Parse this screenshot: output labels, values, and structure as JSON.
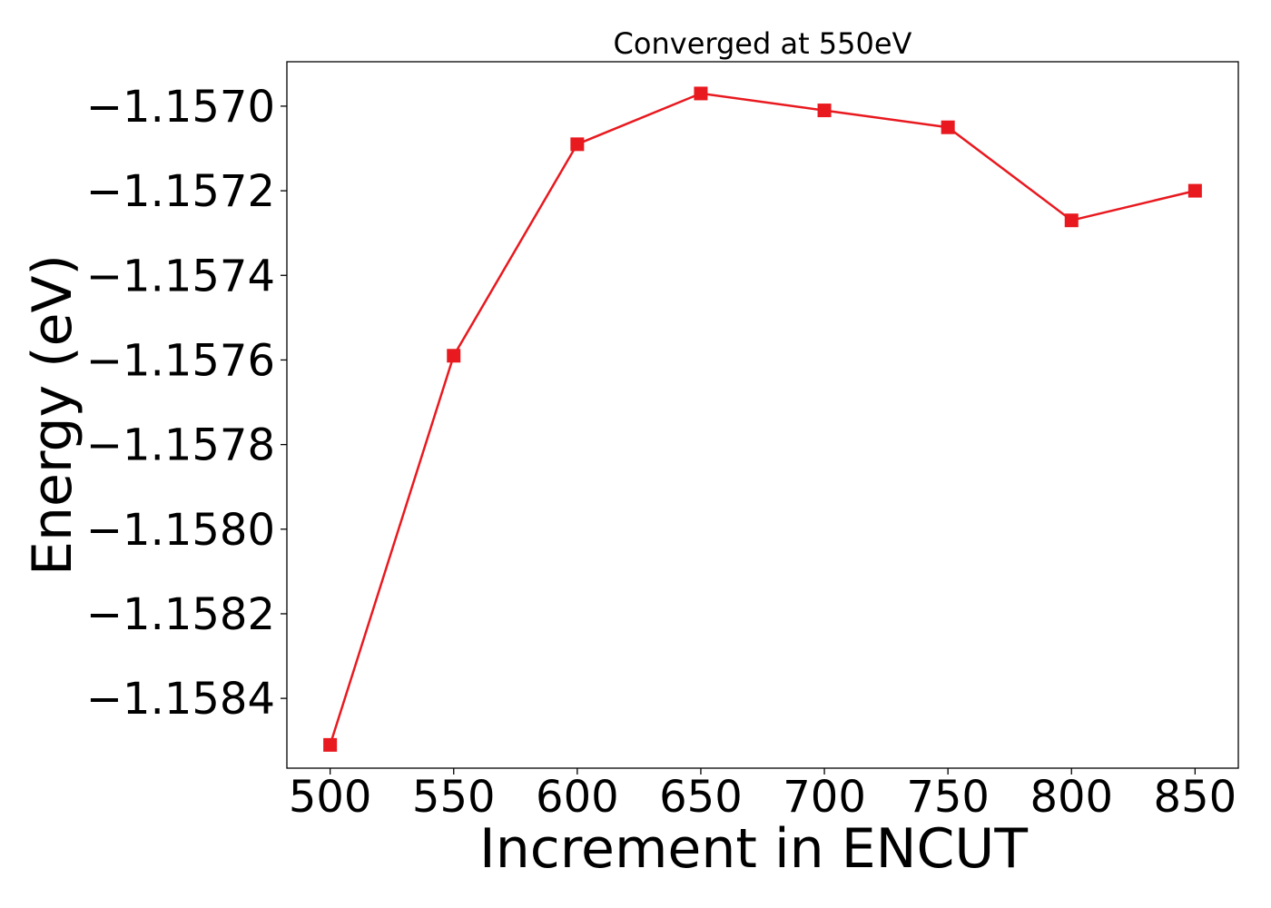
{
  "chart_data": {
    "type": "line",
    "title": "Converged at 550eV",
    "xlabel": "Increment in ENCUT",
    "ylabel": "Energy (eV)",
    "x": [
      500,
      550,
      600,
      650,
      700,
      750,
      800,
      850
    ],
    "series": [
      {
        "values": [
          -1.15851,
          -1.15759,
          -1.15709,
          -1.15697,
          -1.15701,
          -1.15705,
          -1.15727,
          -1.1572
        ],
        "color": "#e8191f",
        "marker": "square"
      }
    ],
    "xticks": [
      500,
      550,
      600,
      650,
      700,
      750,
      800,
      850
    ],
    "xtick_labels": [
      "500",
      "550",
      "600",
      "650",
      "700",
      "750",
      "800",
      "850"
    ],
    "yticks": [
      -1.157,
      -1.1572,
      -1.1574,
      -1.1576,
      -1.1578,
      -1.158,
      -1.1582,
      -1.1584
    ],
    "ytick_labels": [
      "−1.1570",
      "−1.1572",
      "−1.1574",
      "−1.1576",
      "−1.1578",
      "−1.1580",
      "−1.1582",
      "−1.1584"
    ],
    "xlim": [
      482.5,
      867.5
    ],
    "ylim": [
      -1.158565,
      -1.156895
    ],
    "grid": false,
    "legend": "none"
  }
}
